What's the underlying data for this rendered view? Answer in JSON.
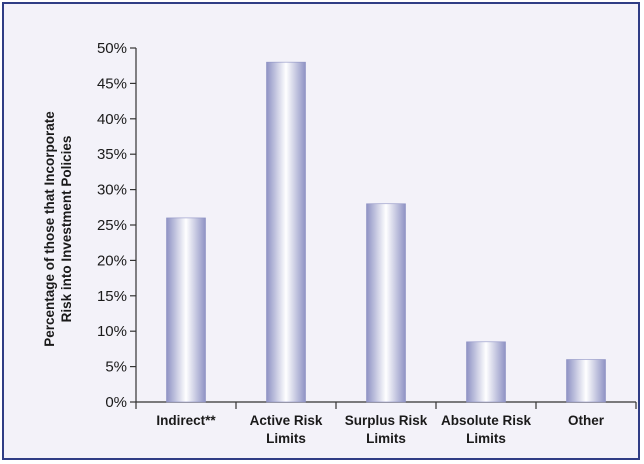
{
  "chart_data": {
    "type": "bar",
    "title": "",
    "xlabel": "",
    "ylabel": "Percentage of those that Incorporate Risk into Investment Policies",
    "ylabel_lines": [
      "Percentage of those that Incorporate",
      "Risk into Investment Policies"
    ],
    "categories": [
      "Indirect**",
      "Active Risk Limits",
      "Surplus Risk Limits",
      "Absolute Risk Limits",
      "Other"
    ],
    "category_label_lines": [
      [
        "Indirect**"
      ],
      [
        "Active Risk",
        "Limits"
      ],
      [
        "Surplus Risk",
        "Limits"
      ],
      [
        "Absolute Risk",
        "Limits"
      ],
      [
        "Other"
      ]
    ],
    "values": [
      26,
      48,
      28,
      8.5,
      6
    ],
    "ylim": [
      0,
      50
    ],
    "yticks": [
      0,
      5,
      10,
      15,
      20,
      25,
      30,
      35,
      40,
      45,
      50
    ],
    "ytick_labels": [
      "0%",
      "5%",
      "10%",
      "15%",
      "20%",
      "25%",
      "30%",
      "35%",
      "40%",
      "45%",
      "50%"
    ],
    "grid": false,
    "legend": "none",
    "colors": {
      "background": "#f3f2f9",
      "border": "#2f3d85",
      "bar_edge": "#8e92c4",
      "bar_center": "#ffffff"
    }
  }
}
